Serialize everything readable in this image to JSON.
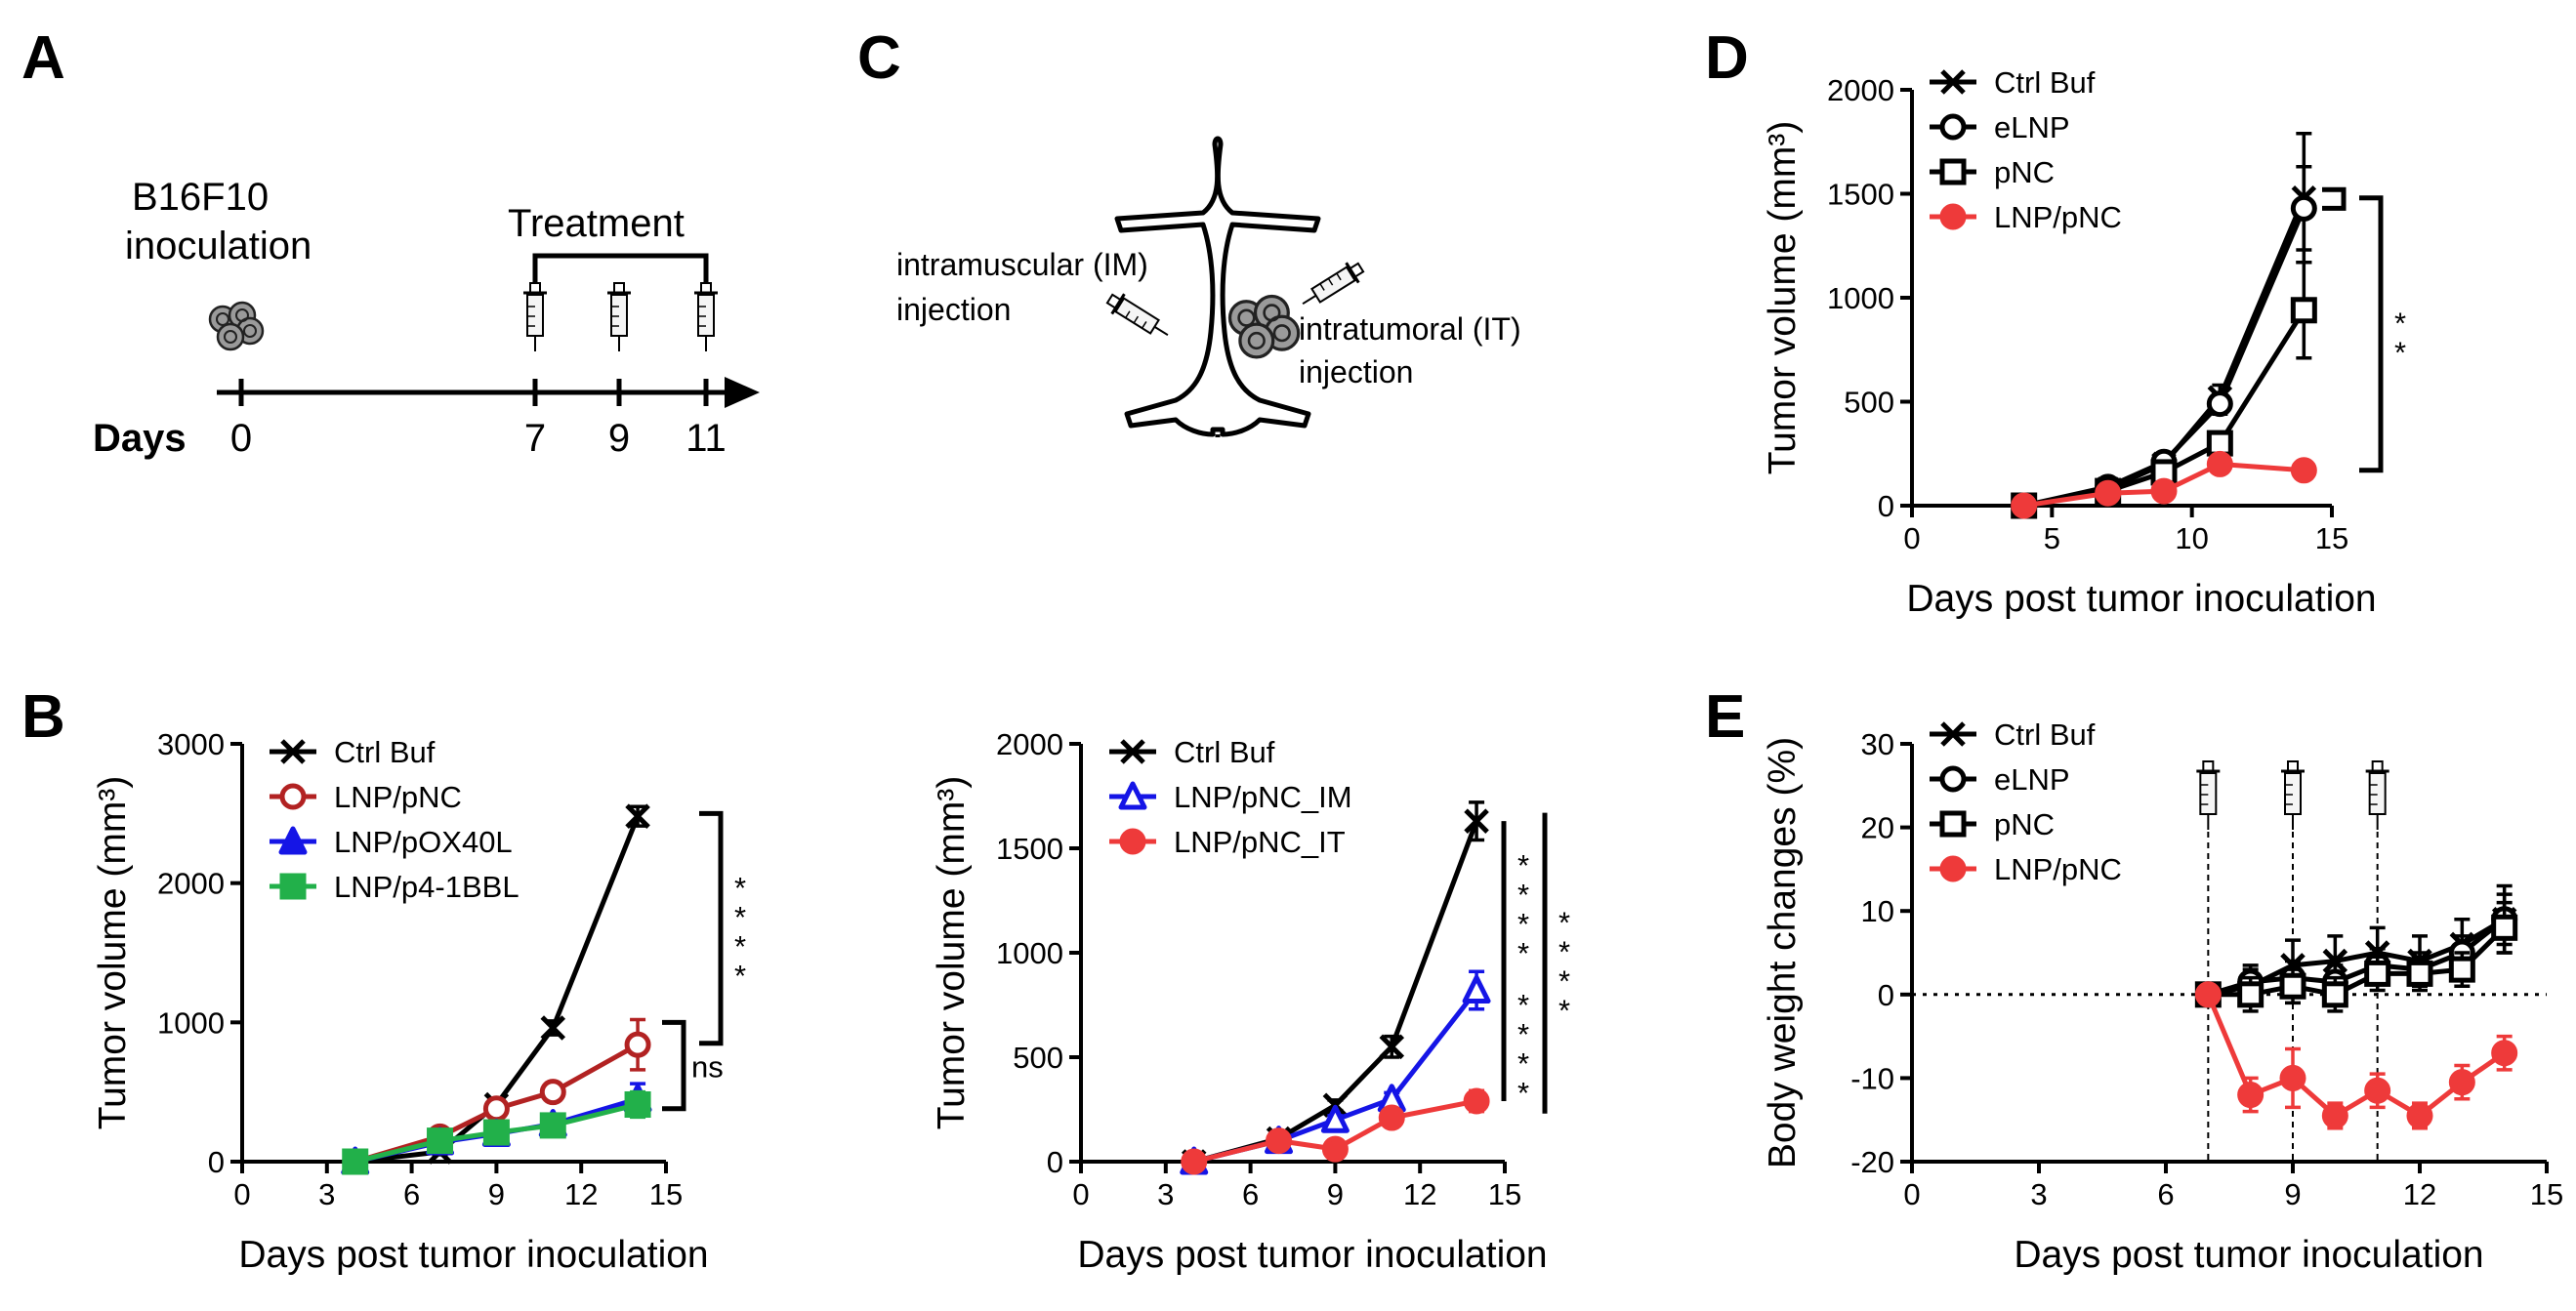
{
  "panel_labels": [
    "A",
    "B",
    "C",
    "D",
    "E"
  ],
  "panel_a": {
    "cell_label_line1": "B16F10",
    "cell_label_line2": "inoculation",
    "treatment_label": "Treatment",
    "days_label": "Days",
    "day_ticks": [
      "0",
      "7",
      "9",
      "11"
    ],
    "icons": [
      "tumor-cell-cluster-icon",
      "syringe-icon",
      "arrow-icon"
    ]
  },
  "panel_c": {
    "im_label_line1": "intramuscular (IM)",
    "im_label_line2": "injection",
    "it_label_line1": "intratumoral (IT)",
    "it_label_line2": "injection",
    "icons": [
      "mouse-icon",
      "syringe-icon",
      "tumor-cell-cluster-icon"
    ]
  },
  "colors": {
    "black": "#000000",
    "red": "#b22222",
    "blue": "#1515e6",
    "green": "#22b04a",
    "coral": "#ee3a3a"
  },
  "chart_data": [
    {
      "id": "B",
      "type": "line",
      "title": "",
      "xlabel": "Days post tumor inoculation",
      "ylabel": "Tumor volume (mm³)",
      "xlim": [
        0,
        15
      ],
      "ylim": [
        0,
        3000
      ],
      "xticks": [
        "0",
        "3",
        "6",
        "9",
        "12",
        "15"
      ],
      "yticks": [
        "0",
        "1000",
        "2000",
        "3000"
      ],
      "legend_position": "top-left",
      "series": [
        {
          "name": "Ctrl Buf",
          "color": "#000000",
          "marker": "x",
          "x": [
            4,
            7,
            9,
            11,
            14
          ],
          "values": [
            0,
            70,
            410,
            960,
            2480
          ],
          "err": [
            0,
            20,
            40,
            50,
            70
          ]
        },
        {
          "name": "LNP/pNC",
          "color": "#b22222",
          "marker": "circle-open",
          "x": [
            4,
            7,
            9,
            11,
            14
          ],
          "values": [
            0,
            180,
            380,
            500,
            840
          ],
          "err": [
            0,
            20,
            40,
            60,
            180
          ]
        },
        {
          "name": "LNP/pOX40L",
          "color": "#1515e6",
          "marker": "triangle",
          "x": [
            4,
            7,
            9,
            11,
            14
          ],
          "values": [
            0,
            140,
            200,
            270,
            450
          ],
          "err": [
            0,
            15,
            25,
            60,
            110
          ]
        },
        {
          "name": "LNP/p4-1BBL",
          "color": "#22b04a",
          "marker": "square",
          "x": [
            4,
            7,
            9,
            11,
            14
          ],
          "values": [
            0,
            150,
            210,
            260,
            410
          ],
          "err": [
            0,
            15,
            25,
            50,
            90
          ]
        }
      ],
      "annotations": [
        {
          "kind": "sig",
          "text": "* * * *",
          "y_from": 850,
          "y_to": 2500
        },
        {
          "kind": "sig",
          "text": "ns",
          "y_from": 380,
          "y_to": 1000
        }
      ]
    },
    {
      "id": "C",
      "type": "line",
      "title": "",
      "xlabel": "Days post tumor inoculation",
      "ylabel": "Tumor volume (mm³)",
      "xlim": [
        0,
        15
      ],
      "ylim": [
        0,
        2000
      ],
      "xticks": [
        "0",
        "3",
        "6",
        "9",
        "12",
        "15"
      ],
      "yticks": [
        "0",
        "500",
        "1000",
        "1500",
        "2000"
      ],
      "legend_position": "top-left",
      "series": [
        {
          "name": "Ctrl Buf",
          "color": "#000000",
          "marker": "x",
          "x": [
            4,
            7,
            9,
            11,
            14
          ],
          "values": [
            0,
            110,
            270,
            550,
            1630
          ],
          "err": [
            0,
            15,
            25,
            50,
            90
          ]
        },
        {
          "name": "LNP/pNC_IM",
          "color": "#1515e6",
          "marker": "triangle-open",
          "x": [
            4,
            7,
            9,
            11,
            14
          ],
          "values": [
            0,
            100,
            200,
            300,
            820
          ],
          "err": [
            0,
            10,
            20,
            30,
            90
          ]
        },
        {
          "name": "LNP/pNC_IT",
          "color": "#ee3a3a",
          "marker": "circle",
          "x": [
            4,
            7,
            9,
            11,
            14
          ],
          "values": [
            0,
            100,
            60,
            210,
            290
          ],
          "err": [
            0,
            10,
            10,
            20,
            50
          ]
        }
      ],
      "annotations": [
        {
          "kind": "sig",
          "text": "* * * *",
          "y_from": 820,
          "y_to": 1630
        },
        {
          "kind": "sig",
          "text": "* * * *",
          "y_from": 290,
          "y_to": 820
        },
        {
          "kind": "sig",
          "text": "* * * *",
          "y_from": 230,
          "y_to": 1670
        }
      ]
    },
    {
      "id": "D",
      "type": "line",
      "title": "",
      "xlabel": "Days post tumor inoculation",
      "ylabel": "Tumor volume (mm³)",
      "xlim": [
        0,
        15
      ],
      "ylim": [
        0,
        2000
      ],
      "xticks": [
        "0",
        "5",
        "10",
        "15"
      ],
      "yticks": [
        "0",
        "500",
        "1000",
        "1500",
        "2000"
      ],
      "legend_position": "top-left",
      "series": [
        {
          "name": "Ctrl Buf",
          "color": "#000000",
          "marker": "x",
          "x": [
            4,
            7,
            9,
            11,
            14
          ],
          "values": [
            0,
            80,
            200,
            520,
            1480
          ],
          "err": [
            0,
            15,
            30,
            60,
            310
          ]
        },
        {
          "name": "eLNP",
          "color": "#000000",
          "marker": "circle-open",
          "x": [
            4,
            7,
            9,
            11,
            14
          ],
          "values": [
            0,
            90,
            210,
            490,
            1430
          ],
          "err": [
            0,
            15,
            30,
            50,
            200
          ]
        },
        {
          "name": "pNC",
          "color": "#000000",
          "marker": "square-open",
          "x": [
            4,
            7,
            9,
            11,
            14
          ],
          "values": [
            0,
            70,
            160,
            300,
            940
          ],
          "err": [
            0,
            15,
            20,
            40,
            230
          ]
        },
        {
          "name": "LNP/pNC",
          "color": "#ee3a3a",
          "marker": "circle",
          "x": [
            4,
            7,
            9,
            11,
            14
          ],
          "values": [
            0,
            60,
            70,
            200,
            170
          ],
          "err": [
            0,
            10,
            15,
            25,
            20
          ]
        }
      ],
      "annotations": [
        {
          "kind": "sig",
          "text": "* *",
          "y_from": 170,
          "y_to": 1480
        },
        {
          "kind": "sig",
          "text": "",
          "y_from": 1430,
          "y_to": 1520
        }
      ]
    },
    {
      "id": "E",
      "type": "line",
      "title": "",
      "xlabel": "Days post tumor inoculation",
      "ylabel": "Body weight changes  (%)",
      "xlim": [
        0,
        15
      ],
      "ylim": [
        -20,
        30
      ],
      "xticks": [
        "0",
        "3",
        "6",
        "9",
        "12",
        "15"
      ],
      "yticks": [
        "-20",
        "-10",
        "0",
        "10",
        "20",
        "30"
      ],
      "legend_position": "top-left",
      "reference_line_y": 0,
      "injection_days": [
        7,
        9,
        11
      ],
      "series": [
        {
          "name": "Ctrl Buf",
          "color": "#000000",
          "marker": "x",
          "x": [
            7,
            8,
            9,
            10,
            11,
            12,
            13,
            14
          ],
          "values": [
            0,
            1,
            3.5,
            4,
            5,
            4,
            6,
            9
          ],
          "err": [
            0,
            2,
            3,
            3,
            3,
            3,
            3,
            4
          ]
        },
        {
          "name": "eLNP",
          "color": "#000000",
          "marker": "circle-open",
          "x": [
            7,
            8,
            9,
            10,
            11,
            12,
            13,
            14
          ],
          "values": [
            0,
            1.5,
            2,
            1.5,
            3.5,
            3,
            5,
            9
          ],
          "err": [
            0,
            2,
            2,
            2,
            2,
            2,
            2,
            3
          ]
        },
        {
          "name": "pNC",
          "color": "#000000",
          "marker": "square-open",
          "x": [
            7,
            8,
            9,
            10,
            11,
            12,
            13,
            14
          ],
          "values": [
            0,
            0,
            1,
            0,
            2.5,
            2.5,
            3,
            8
          ],
          "err": [
            0,
            2,
            2,
            2,
            2,
            2,
            2,
            3
          ]
        },
        {
          "name": "LNP/pNC",
          "color": "#ee3a3a",
          "marker": "circle",
          "x": [
            7,
            8,
            9,
            10,
            11,
            12,
            13,
            14
          ],
          "values": [
            0,
            -12,
            -10,
            -14.5,
            -11.5,
            -14.5,
            -10.5,
            -7
          ],
          "err": [
            0,
            2,
            3.5,
            1.5,
            2,
            1.5,
            2,
            2
          ]
        }
      ]
    }
  ]
}
